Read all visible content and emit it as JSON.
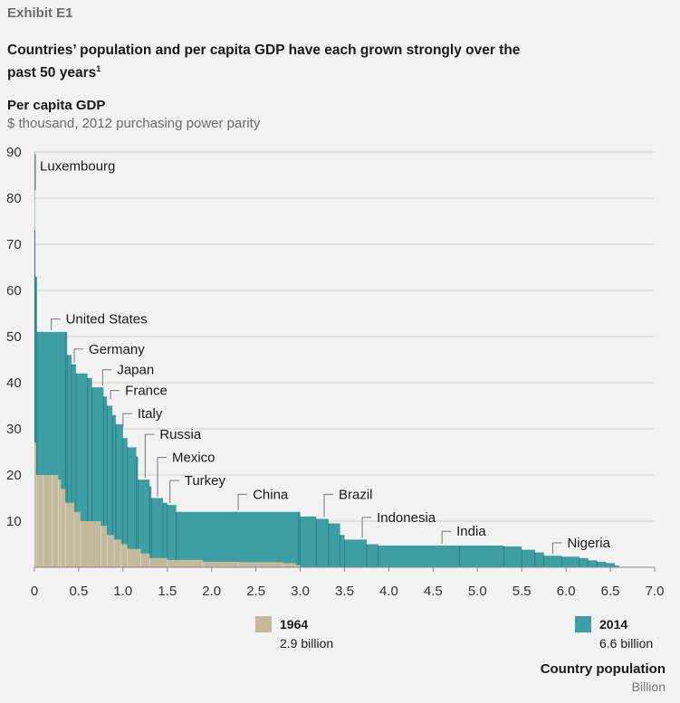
{
  "header": {
    "exhibit": "Exhibit E1",
    "title": "Countries’ population and per capita GDP have each grown strongly over the past 50 years",
    "title_footnote": "1"
  },
  "chart_data": {
    "type": "area",
    "ylabel": "Per capita GDP",
    "yunit": "$ thousand, 2012 purchasing power parity",
    "xlabel": "Country population",
    "xunit": "Billion",
    "xlim": [
      0,
      7.0
    ],
    "ylim": [
      0,
      90
    ],
    "x_ticks": [
      "0",
      "0.5",
      "1.0",
      "1.5",
      "2.0",
      "2.5",
      "3.0",
      "3.5",
      "4.0",
      "4.5",
      "5.0",
      "5.5",
      "6.0",
      "6.5",
      "7.0"
    ],
    "y_ticks": [
      "10",
      "20",
      "30",
      "40",
      "50",
      "60",
      "70",
      "80",
      "90"
    ],
    "colors": {
      "s1964": "#c3b99b",
      "s2014": "#3d9ea3",
      "edge1964": "#e9e2cc",
      "edge2014": "#1f6f73",
      "grid": "#cfcfcf"
    },
    "series": [
      {
        "name": "1964",
        "total": "2.9 billion",
        "steps": [
          [
            0.0,
            27
          ],
          [
            0.02,
            20
          ],
          [
            0.1,
            20
          ],
          [
            0.2,
            20
          ],
          [
            0.27,
            19
          ],
          [
            0.3,
            17
          ],
          [
            0.35,
            14
          ],
          [
            0.45,
            12
          ],
          [
            0.52,
            10
          ],
          [
            0.75,
            9
          ],
          [
            0.82,
            7
          ],
          [
            0.9,
            6
          ],
          [
            0.98,
            5
          ],
          [
            1.05,
            4
          ],
          [
            1.2,
            3
          ],
          [
            1.3,
            2
          ],
          [
            1.5,
            1.6
          ],
          [
            1.9,
            1.2
          ],
          [
            2.3,
            1.1
          ],
          [
            2.8,
            0.9
          ],
          [
            2.95,
            0.5
          ],
          [
            3.0,
            0
          ]
        ]
      },
      {
        "name": "2014",
        "total": "6.6 billion",
        "steps": [
          [
            0.0,
            90
          ],
          [
            0.005,
            73
          ],
          [
            0.01,
            63
          ],
          [
            0.03,
            51
          ],
          [
            0.35,
            51
          ],
          [
            0.37,
            46
          ],
          [
            0.42,
            44
          ],
          [
            0.47,
            42
          ],
          [
            0.6,
            41
          ],
          [
            0.65,
            39
          ],
          [
            0.78,
            37
          ],
          [
            0.82,
            35
          ],
          [
            0.88,
            33
          ],
          [
            0.92,
            31
          ],
          [
            1.0,
            28
          ],
          [
            1.05,
            26
          ],
          [
            1.15,
            24
          ],
          [
            1.17,
            19
          ],
          [
            1.3,
            17.5
          ],
          [
            1.32,
            15
          ],
          [
            1.45,
            14
          ],
          [
            1.5,
            13.5
          ],
          [
            1.6,
            12
          ],
          [
            2.98,
            12
          ],
          [
            3.0,
            11
          ],
          [
            3.18,
            10.5
          ],
          [
            3.32,
            9.5
          ],
          [
            3.45,
            7
          ],
          [
            3.5,
            6
          ],
          [
            3.75,
            5
          ],
          [
            3.88,
            4.7
          ],
          [
            4.8,
            4.7
          ],
          [
            5.3,
            4.5
          ],
          [
            5.5,
            3.8
          ],
          [
            5.65,
            3.2
          ],
          [
            5.75,
            2.5
          ],
          [
            5.95,
            2.3
          ],
          [
            6.15,
            2.0
          ],
          [
            6.25,
            1.5
          ],
          [
            6.35,
            1.2
          ],
          [
            6.45,
            0.9
          ],
          [
            6.55,
            0.4
          ],
          [
            6.6,
            0
          ]
        ]
      }
    ],
    "annotations": [
      {
        "label": "Luxembourg",
        "x": 0.0,
        "y": 90,
        "ly": 86
      },
      {
        "label": "United States",
        "x": 0.19,
        "y": 51,
        "ly": 54
      },
      {
        "label": "Germany",
        "x": 0.45,
        "y": 44,
        "ly": 47.5
      },
      {
        "label": "Japan",
        "x": 0.77,
        "y": 39,
        "ly": 43
      },
      {
        "label": "France",
        "x": 0.86,
        "y": 36,
        "ly": 38.5
      },
      {
        "label": "Italy",
        "x": 1.0,
        "y": 30,
        "ly": 33.5
      },
      {
        "label": "Russia",
        "x": 1.25,
        "y": 19,
        "ly": 29
      },
      {
        "label": "Mexico",
        "x": 1.39,
        "y": 15,
        "ly": 24
      },
      {
        "label": "Turkey",
        "x": 1.53,
        "y": 13.5,
        "ly": 19
      },
      {
        "label": "China",
        "x": 2.3,
        "y": 12,
        "ly": 16
      },
      {
        "label": "Brazil",
        "x": 3.27,
        "y": 10.5,
        "ly": 16
      },
      {
        "label": "Indonesia",
        "x": 3.7,
        "y": 6,
        "ly": 11
      },
      {
        "label": "India",
        "x": 4.6,
        "y": 4.7,
        "ly": 8
      },
      {
        "label": "Nigeria",
        "x": 5.85,
        "y": 2.5,
        "ly": 5.5
      }
    ]
  }
}
